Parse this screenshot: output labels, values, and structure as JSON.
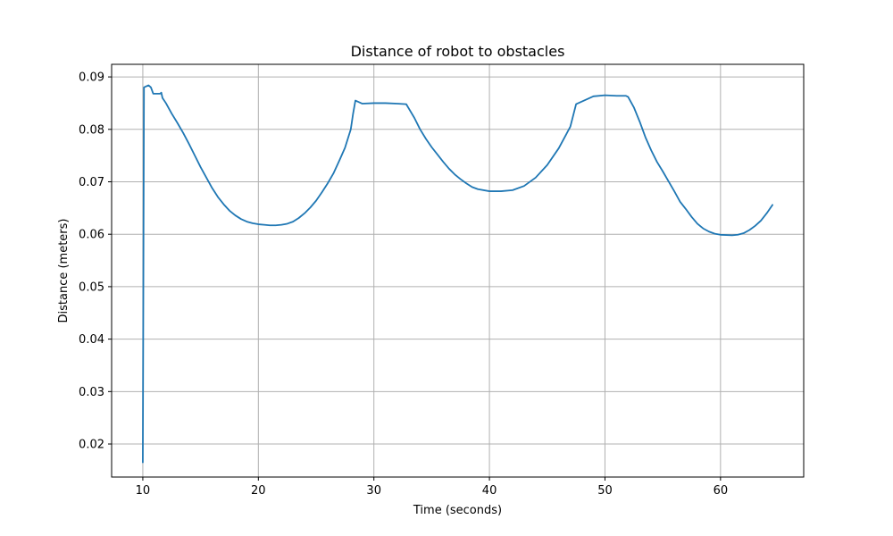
{
  "chart_data": {
    "type": "line",
    "title": "Distance of robot to obstacles",
    "xlabel": "Time (seconds)",
    "ylabel": "Distance (meters)",
    "xlim": [
      7.3,
      67.2
    ],
    "ylim": [
      0.0137,
      0.0924
    ],
    "xticks": [
      10,
      20,
      30,
      40,
      50,
      60
    ],
    "yticks": [
      0.02,
      0.03,
      0.04,
      0.05,
      0.06,
      0.07,
      0.08,
      0.09
    ],
    "xtick_labels": [
      "10",
      "20",
      "30",
      "40",
      "50",
      "60"
    ],
    "ytick_labels": [
      "0.02",
      "0.03",
      "0.04",
      "0.05",
      "0.06",
      "0.07",
      "0.08",
      "0.09"
    ],
    "grid": true,
    "colors": {
      "series": "#1f77b4"
    },
    "series": [
      {
        "x": [
          10.0,
          10.1,
          10.2,
          10.5,
          10.7,
          10.9,
          11.0,
          11.5,
          11.6,
          11.7,
          12.0,
          12.5,
          13.0,
          13.5,
          14.0,
          14.5,
          15.0,
          15.5,
          16.0,
          16.5,
          17.0,
          17.5,
          18.0,
          18.5,
          19.0,
          19.5,
          20.0,
          20.5,
          21.0,
          21.5,
          22.0,
          22.5,
          23.0,
          23.5,
          24.0,
          24.5,
          25.0,
          25.5,
          26.0,
          26.5,
          27.0,
          27.5,
          28.0,
          28.2,
          28.4,
          29.0,
          30.0,
          31.0,
          32.0,
          32.8,
          33.5,
          34.0,
          34.5,
          35.0,
          35.5,
          36.0,
          36.5,
          37.0,
          37.5,
          38.0,
          38.5,
          39.0,
          40.0,
          41.0,
          42.0,
          43.0,
          44.0,
          45.0,
          46.0,
          47.0,
          47.5,
          49.0,
          50.0,
          51.0,
          51.8,
          52.0,
          52.5,
          53.0,
          53.5,
          54.0,
          54.5,
          55.0,
          55.5,
          56.0,
          56.5,
          57.0,
          57.5,
          58.0,
          58.5,
          59.0,
          59.5,
          60.0,
          61.0,
          61.5,
          62.0,
          62.5,
          63.0,
          63.5,
          64.0,
          64.5
        ],
        "y": [
          0.0165,
          0.088,
          0.0881,
          0.0884,
          0.088,
          0.0868,
          0.0868,
          0.0868,
          0.087,
          0.086,
          0.085,
          0.083,
          0.0812,
          0.0793,
          0.0772,
          0.075,
          0.0728,
          0.0708,
          0.0688,
          0.0671,
          0.0657,
          0.0645,
          0.0636,
          0.0629,
          0.0624,
          0.0621,
          0.0619,
          0.0618,
          0.0617,
          0.0617,
          0.0618,
          0.062,
          0.0624,
          0.0631,
          0.064,
          0.0651,
          0.0664,
          0.068,
          0.0697,
          0.0716,
          0.074,
          0.0765,
          0.08,
          0.083,
          0.0855,
          0.0849,
          0.085,
          0.085,
          0.0849,
          0.0848,
          0.0822,
          0.08,
          0.0782,
          0.0766,
          0.0752,
          0.0738,
          0.0725,
          0.0714,
          0.0705,
          0.0697,
          0.069,
          0.0686,
          0.0682,
          0.0682,
          0.0684,
          0.0692,
          0.0708,
          0.0732,
          0.0764,
          0.0805,
          0.0848,
          0.0863,
          0.0865,
          0.0864,
          0.0864,
          0.0862,
          0.0842,
          0.0815,
          0.0785,
          0.076,
          0.0738,
          0.072,
          0.0701,
          0.0682,
          0.0662,
          0.0648,
          0.0633,
          0.062,
          0.0611,
          0.0605,
          0.0601,
          0.0599,
          0.0598,
          0.0599,
          0.0602,
          0.0608,
          0.0616,
          0.0626,
          0.064,
          0.0656
        ]
      }
    ]
  }
}
